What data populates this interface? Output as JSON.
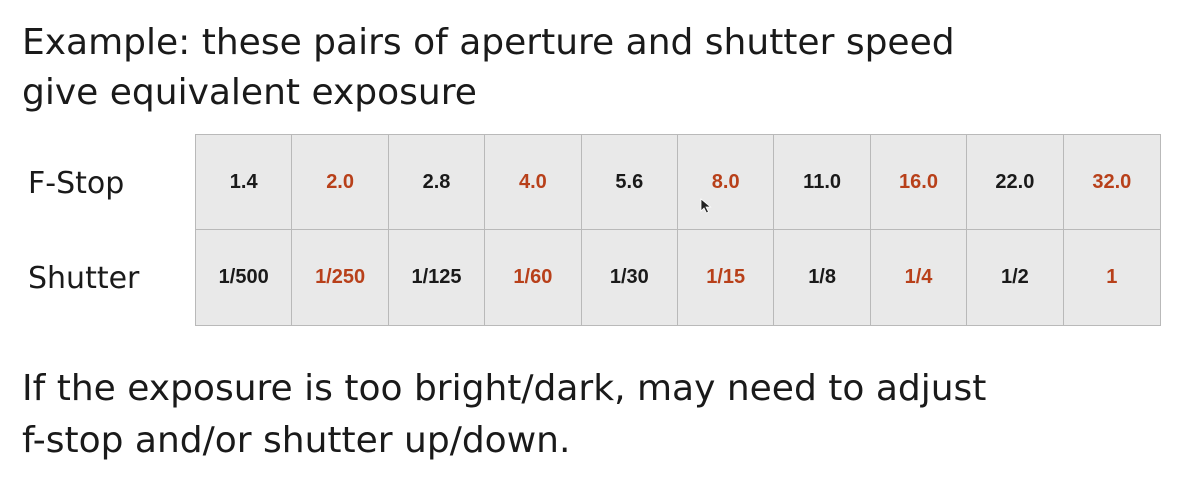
{
  "title": {
    "line1": "Example: these pairs of aperture and shutter speed",
    "line2": "give equivalent exposure"
  },
  "table": {
    "rows": [
      {
        "label": "F-Stop",
        "values": [
          "1.4",
          "2.0",
          "2.8",
          "4.0",
          "5.6",
          "8.0",
          "11.0",
          "16.0",
          "22.0",
          "32.0"
        ]
      },
      {
        "label": "Shutter",
        "values": [
          "1/500",
          "1/250",
          "1/125",
          "1/60",
          "1/30",
          "1/15",
          "1/8",
          "1/4",
          "1/2",
          "1"
        ]
      }
    ],
    "accent_color": "#b8401a",
    "text_color": "#1a1a1a"
  },
  "footer": {
    "line1": "If the exposure is too bright/dark, may need to adjust",
    "line2": "f-stop and/or shutter up/down."
  },
  "cursor_icon": "mouse-pointer-icon"
}
